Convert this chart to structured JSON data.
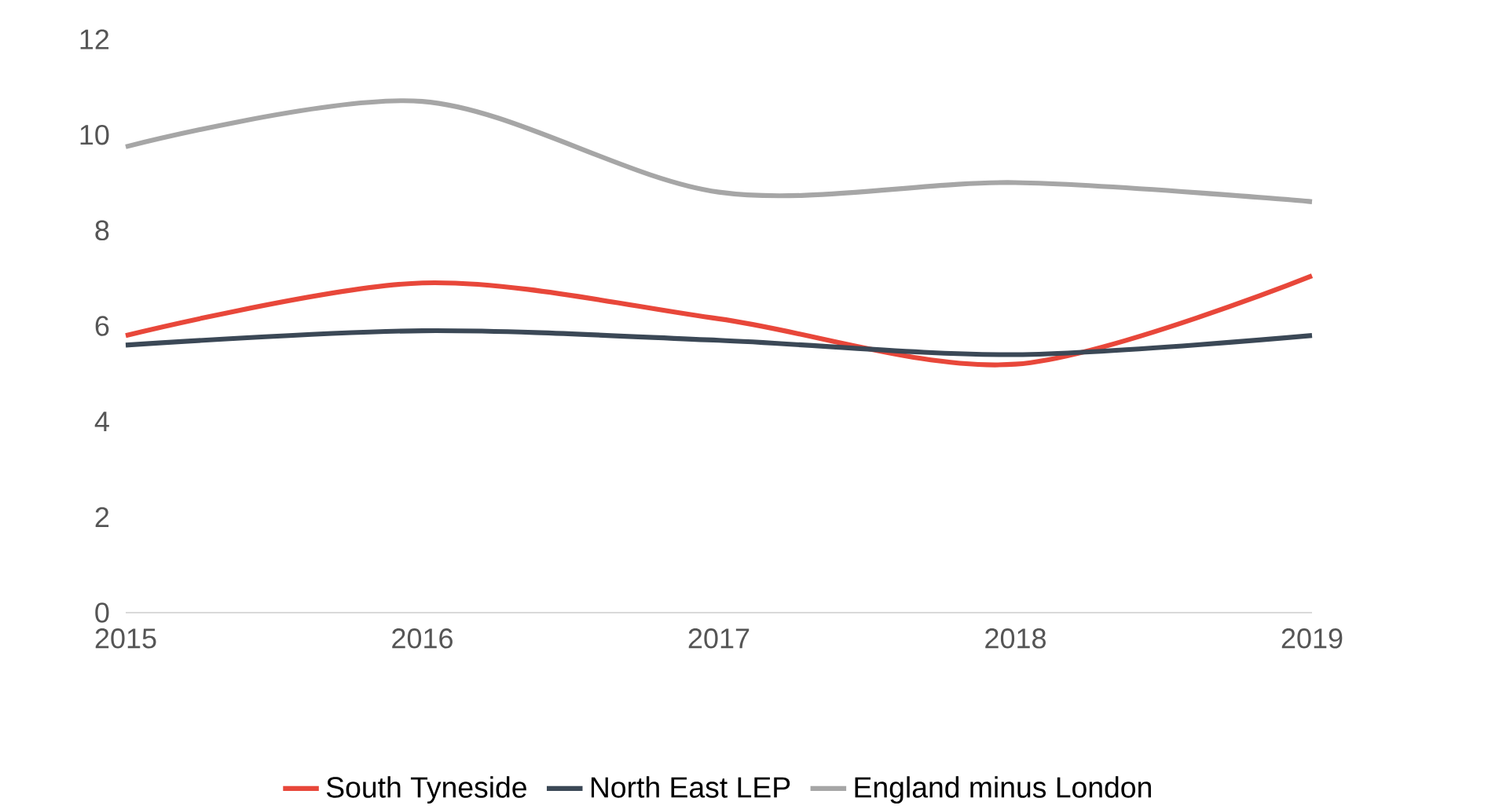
{
  "chart_data": {
    "type": "line",
    "x": [
      2015,
      2016,
      2017,
      2018,
      2019
    ],
    "series": [
      {
        "name": "South Tyneside",
        "color": "#e8473a",
        "values": [
          5.8,
          6.9,
          6.15,
          5.2,
          7.05
        ]
      },
      {
        "name": "North East LEP",
        "color": "#3b4856",
        "values": [
          5.6,
          5.9,
          5.7,
          5.4,
          5.8
        ]
      },
      {
        "name": "England minus London",
        "color": "#a6a6a6",
        "values": [
          9.75,
          10.7,
          8.8,
          9.0,
          8.6
        ]
      }
    ],
    "xlim": [
      2015,
      2019
    ],
    "ylim": [
      0,
      12
    ],
    "xticks": [
      2015,
      2016,
      2017,
      2018,
      2019
    ],
    "yticks": [
      0,
      2,
      4,
      6,
      8,
      10,
      12
    ],
    "legend": "bottom",
    "grid": false
  }
}
